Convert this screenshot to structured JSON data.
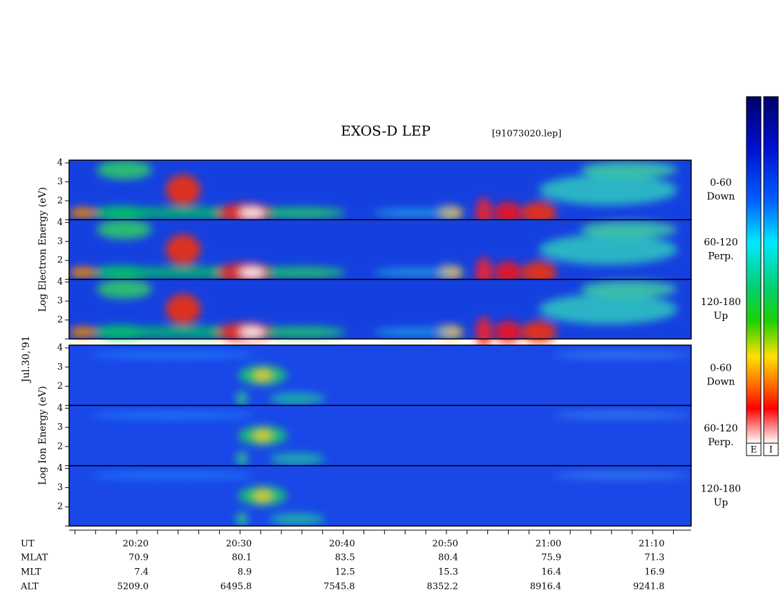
{
  "header": {
    "title": "EXOS-D LEP",
    "file": "[91073020.lep]"
  },
  "date": "Jul.30,'91",
  "groups": [
    {
      "label": "Log Electron Energy (eV)",
      "panels": [
        {
          "angle": "0-60",
          "direction": "Down"
        },
        {
          "angle": "60-120",
          "direction": "Perp."
        },
        {
          "angle": "120-180",
          "direction": "Up"
        }
      ]
    },
    {
      "label": "Log Ion Energy (eV)",
      "panels": [
        {
          "angle": "0-60",
          "direction": "Down"
        },
        {
          "angle": "60-120",
          "direction": "Perp."
        },
        {
          "angle": "120-180",
          "direction": "Up"
        }
      ]
    }
  ],
  "energy_ticks": [
    "4",
    "3",
    "2"
  ],
  "colorbars": [
    "E",
    "I"
  ],
  "time_axis": {
    "rows": [
      {
        "label": "UT",
        "values": [
          "20:20",
          "20:30",
          "20:40",
          "20:50",
          "21:00",
          "21:10"
        ]
      },
      {
        "label": "MLAT",
        "values": [
          "70.9",
          "80.1",
          "83.5",
          "80.4",
          "75.9",
          "71.3"
        ]
      },
      {
        "label": "MLT",
        "values": [
          "7.4",
          "8.9",
          "12.5",
          "15.3",
          "16.4",
          "16.9"
        ]
      },
      {
        "label": "ALT",
        "values": [
          "5209.0",
          "6495.8",
          "7545.8",
          "8352.2",
          "8916.4",
          "9241.8"
        ]
      }
    ]
  }
}
